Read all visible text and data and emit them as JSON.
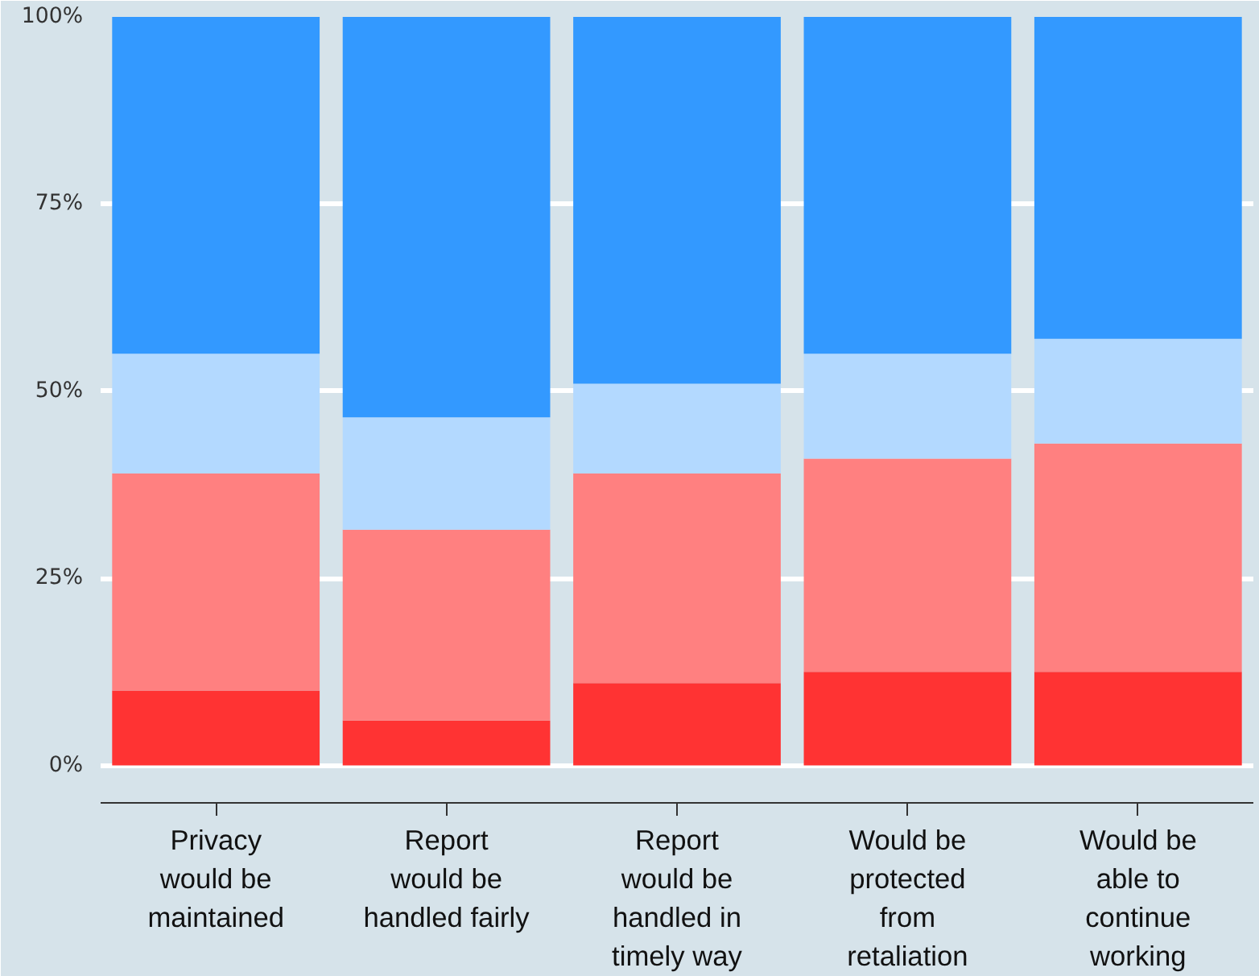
{
  "chart_data": {
    "type": "bar",
    "stacked": true,
    "categories": [
      "Privacy\nwould be\nmaintained",
      "Report\nwould be\nhandled fairly",
      "Report\nwould be\nhandled in\ntimely way",
      "Would be\nprotected\nfrom\nretaliation",
      "Would be\nable to\ncontinue\nworking"
    ],
    "series": [
      {
        "color": "#ff3333",
        "values": [
          10,
          6,
          11,
          12.5,
          12.5
        ]
      },
      {
        "color": "#ff8080",
        "values": [
          29,
          25.5,
          28,
          28.5,
          30.5
        ]
      },
      {
        "color": "#b3d9ff",
        "values": [
          16,
          15,
          12,
          14,
          14
        ]
      },
      {
        "color": "#3399ff",
        "values": [
          45,
          53.5,
          49,
          45,
          43
        ]
      }
    ],
    "ylim": [
      -5,
      100
    ],
    "yticks": [
      {
        "value": 0,
        "label": "0%"
      },
      {
        "value": 25,
        "label": "25%"
      },
      {
        "value": 50,
        "label": "50%"
      },
      {
        "value": 75,
        "label": "75%"
      },
      {
        "value": 100,
        "label": "100%"
      }
    ],
    "grid": "y"
  }
}
